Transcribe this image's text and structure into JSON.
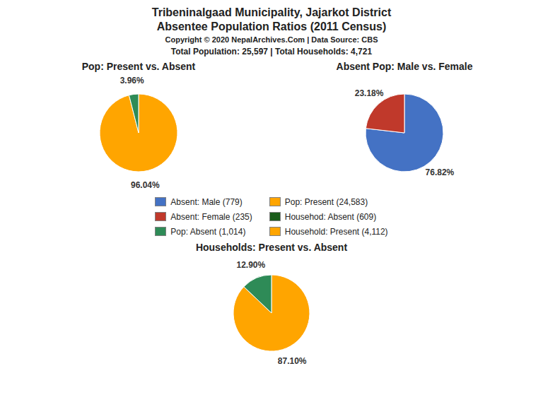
{
  "title": "Tribeninalgaad Municipality, Jajarkot District",
  "subtitle": "Absentee Population Ratios (2011 Census)",
  "annotations": [
    "Copyright © 2020 NepalArchives.Com | Data Source: CBS",
    "Total Population: 25,597 | Total Households: 4,721"
  ],
  "legend_entries": [
    {
      "label": "Absent: Male (779)",
      "color": "#4472C4"
    },
    {
      "label": "Absent: Female (235)",
      "color": "#C0392B"
    },
    {
      "label": "Pop: Absent (1,014)",
      "color": "#2E8B57"
    },
    {
      "label": "Pop: Present (24,583)",
      "color": "#FFA500"
    },
    {
      "label": "Househod: Absent (609)",
      "color": "#1a5c1a"
    },
    {
      "label": "Household: Present (4,112)",
      "color": "#FFA500"
    }
  ],
  "chart_data": [
    {
      "type": "pie",
      "title": "Pop: Present vs. Absent",
      "values": [
        96.04,
        3.96
      ],
      "value_labels": [
        "96.04%",
        "3.96%"
      ],
      "colors": [
        "#FFA500",
        "#2E8B57"
      ],
      "data_labels": true
    },
    {
      "type": "pie",
      "title": "Absent Pop: Male vs. Female",
      "values": [
        76.82,
        23.18
      ],
      "value_labels": [
        "76.82%",
        "23.18%"
      ],
      "colors": [
        "#4472C4",
        "#C0392B"
      ],
      "data_labels": true
    },
    {
      "type": "pie",
      "title": "Households: Present vs. Absent",
      "values": [
        87.1,
        12.9
      ],
      "value_labels": [
        "87.10%",
        "12.90%"
      ],
      "colors": [
        "#FFA500",
        "#2E8B57"
      ],
      "data_labels": true
    }
  ]
}
